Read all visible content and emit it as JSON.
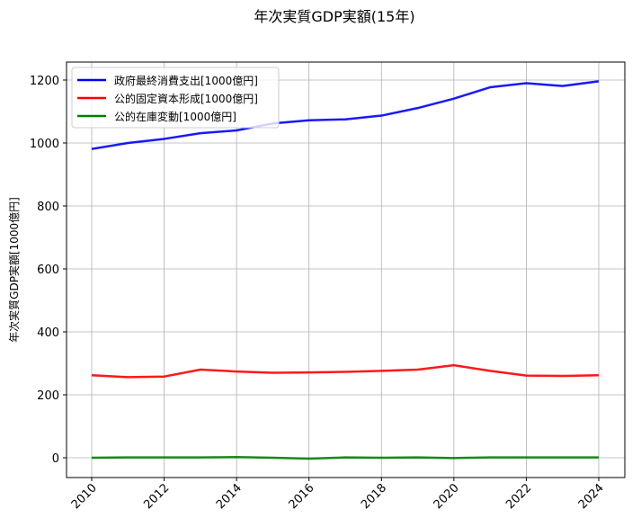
{
  "chart_data": {
    "type": "line",
    "title": "年次実質GDP実額(15年)",
    "xlabel": "",
    "ylabel": "年次実質GDP実額[1000億円]",
    "x": [
      2010,
      2011,
      2012,
      2013,
      2014,
      2015,
      2016,
      2017,
      2018,
      2019,
      2020,
      2021,
      2022,
      2023,
      2024
    ],
    "series": [
      {
        "name": "政府最終消費支出[1000億円]",
        "color": "#0000ff",
        "values": [
          981,
          1000,
          1013,
          1031,
          1040,
          1062,
          1072,
          1075,
          1087,
          1111,
          1141,
          1177,
          1190,
          1181,
          1196
        ]
      },
      {
        "name": "公的固定資本形成[1000億円]",
        "color": "#ff0000",
        "values": [
          262,
          256,
          258,
          280,
          274,
          270,
          271,
          273,
          276,
          280,
          294,
          276,
          261,
          260,
          262
        ]
      },
      {
        "name": "公的在庫変動[1000億円]",
        "color": "#008000",
        "values": [
          0,
          1,
          1,
          1,
          2,
          0,
          -3,
          1,
          0,
          1,
          -1,
          1,
          1,
          1,
          1
        ]
      }
    ],
    "xticks": [
      "2010",
      "2012",
      "2014",
      "2016",
      "2018",
      "2020",
      "2022",
      "2024"
    ],
    "yticks": [
      "0",
      "200",
      "400",
      "600",
      "800",
      "1000",
      "1200"
    ],
    "xlim": [
      2009.3,
      2024.7
    ],
    "ylim": [
      -60,
      1260
    ],
    "grid": true,
    "legend_position": "upper left",
    "xtick_rotation": 45
  }
}
